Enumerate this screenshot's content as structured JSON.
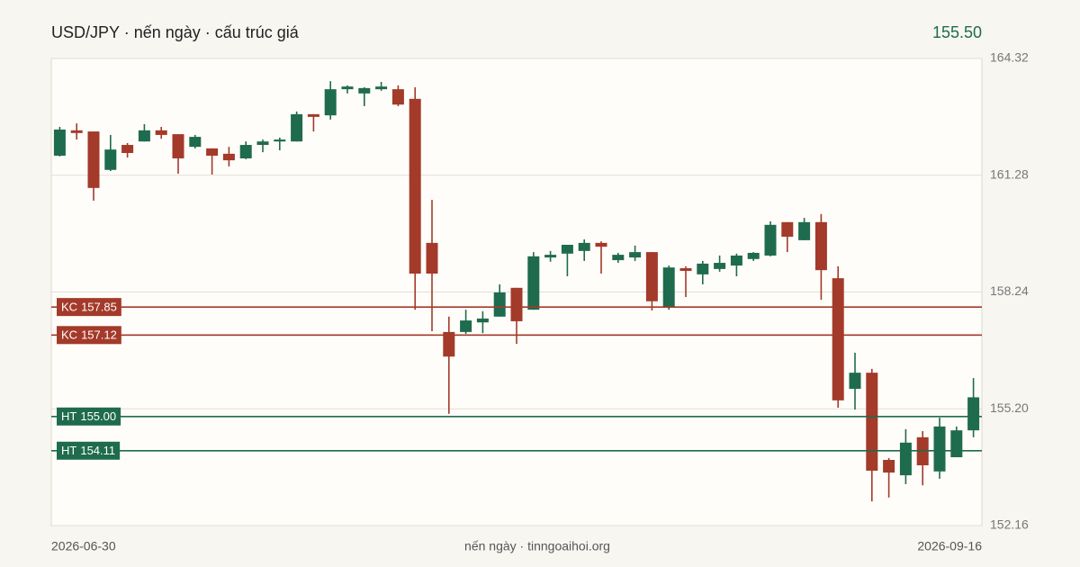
{
  "header": {
    "title": "USD/JPY · nến ngày · cấu trúc giá",
    "last_price": "155.50"
  },
  "footer": {
    "source": "nến ngày · tinngoaihoi.org"
  },
  "chart_data": {
    "type": "candlestick",
    "categories": [
      "2026-06-30",
      null,
      null,
      null,
      null,
      null,
      null,
      null,
      null,
      null,
      null,
      null,
      null,
      null,
      null,
      null,
      null,
      null,
      null,
      null,
      null,
      null,
      null,
      null,
      null,
      null,
      null,
      null,
      null,
      null,
      null,
      null,
      null,
      null,
      null,
      null,
      null,
      null,
      null,
      null,
      null,
      null,
      null,
      null,
      null,
      null,
      null,
      null,
      null,
      null,
      null,
      null,
      null,
      null,
      "2026-09-16"
    ],
    "open": [
      161.79,
      162.45,
      162.42,
      161.42,
      162.07,
      162.16,
      162.45,
      162.35,
      162.02,
      161.98,
      161.84,
      161.72,
      162.07,
      162.16,
      162.16,
      162.87,
      162.84,
      163.52,
      163.41,
      163.52,
      163.52,
      163.27,
      159.52,
      157.2,
      157.2,
      157.45,
      157.6,
      158.35,
      157.78,
      159.14,
      159.24,
      159.31,
      159.52,
      159.07,
      159.14,
      159.28,
      157.83,
      158.86,
      158.7,
      158.84,
      158.93,
      159.1,
      159.19,
      160.06,
      159.59,
      160.06,
      158.6,
      155.72,
      156.14,
      153.87,
      153.47,
      154.46,
      153.57,
      153.94,
      154.64
    ],
    "high": [
      162.54,
      162.63,
      162.42,
      162.33,
      162.12,
      162.61,
      162.54,
      162.35,
      162.33,
      161.98,
      162.02,
      162.16,
      162.21,
      162.26,
      162.94,
      162.87,
      163.73,
      163.62,
      163.57,
      163.71,
      163.62,
      163.57,
      160.64,
      157.6,
      157.78,
      157.74,
      158.44,
      158.35,
      159.28,
      159.31,
      159.47,
      159.61,
      159.56,
      159.26,
      159.45,
      159.28,
      158.93,
      158.91,
      159.05,
      159.19,
      159.24,
      159.28,
      160.08,
      160.06,
      160.17,
      160.27,
      158.91,
      156.66,
      156.24,
      153.92,
      154.67,
      154.62,
      154.97,
      154.74,
      156.0
    ],
    "low": [
      161.77,
      162.21,
      160.62,
      161.39,
      161.74,
      162.16,
      162.23,
      161.32,
      161.98,
      161.3,
      161.51,
      161.7,
      161.88,
      161.93,
      162.16,
      162.42,
      162.73,
      163.41,
      163.08,
      163.48,
      163.08,
      157.78,
      157.22,
      155.07,
      157.15,
      157.17,
      157.6,
      156.89,
      157.78,
      159.03,
      158.65,
      159.05,
      158.72,
      159.0,
      159.05,
      157.76,
      157.78,
      158.11,
      158.44,
      158.77,
      158.65,
      159.05,
      159.17,
      159.28,
      159.59,
      158.04,
      155.23,
      155.18,
      152.79,
      152.89,
      153.24,
      153.21,
      153.38,
      153.94,
      154.46
    ],
    "close": [
      162.47,
      162.38,
      160.95,
      161.95,
      161.86,
      162.45,
      162.33,
      161.72,
      162.28,
      161.79,
      161.67,
      162.07,
      162.16,
      162.21,
      162.87,
      162.8,
      163.52,
      163.59,
      163.55,
      163.59,
      163.12,
      158.72,
      158.72,
      156.56,
      157.5,
      157.55,
      158.23,
      157.48,
      159.17,
      159.21,
      159.47,
      159.52,
      159.42,
      159.21,
      159.28,
      158.0,
      158.88,
      158.79,
      158.98,
      159.0,
      159.19,
      159.26,
      159.99,
      159.68,
      160.06,
      158.81,
      155.42,
      156.14,
      153.59,
      153.54,
      154.32,
      153.73,
      154.74,
      154.64,
      155.5
    ],
    "up_color": "#1f6b4e",
    "down_color": "#a33a2a",
    "ylim": [
      152.16,
      164.32
    ],
    "yticks": [
      152.16,
      {
        "value": 155.2,
        "label": "155.20"
      },
      158.24,
      161.28,
      164.32
    ],
    "grid": true,
    "levels": [
      {
        "name": "KC",
        "value": 157.85,
        "color": "#a33a2a"
      },
      {
        "name": "KC",
        "value": 157.12,
        "color": "#a33a2a"
      },
      {
        "name": "HT",
        "value": {
          "value": 155,
          "label": "155.00"
        },
        "color": "#1f6b4e"
      },
      {
        "name": "HT",
        "value": 154.11,
        "color": "#1f6b4e"
      }
    ]
  }
}
